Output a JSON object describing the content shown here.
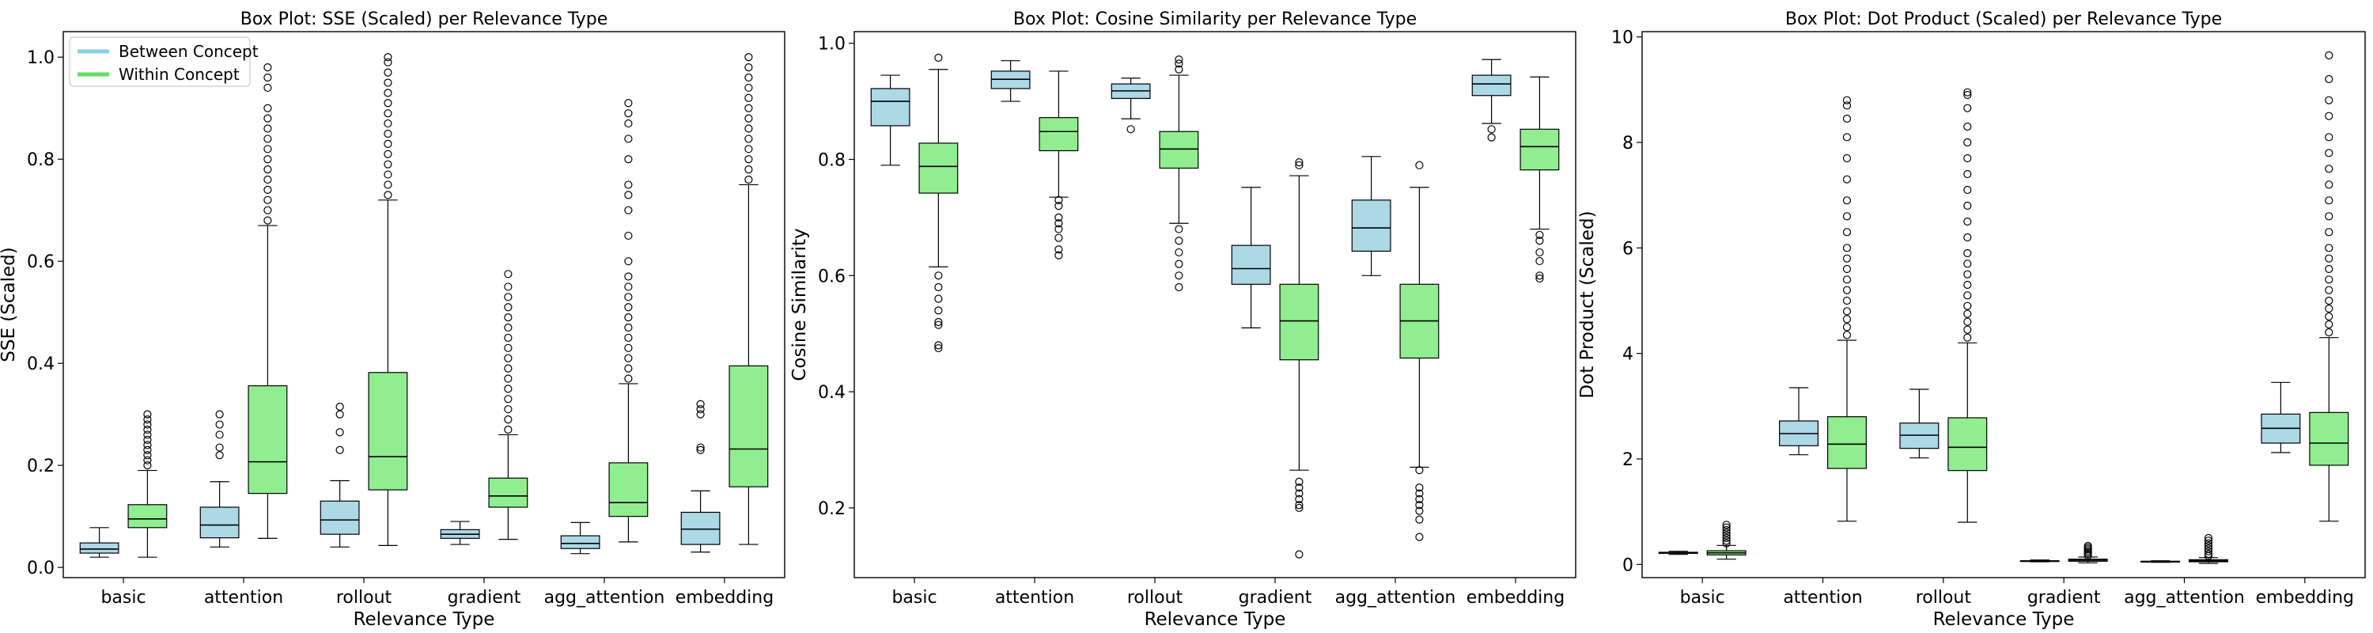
{
  "figure": {
    "background": "#ffffff"
  },
  "colors": {
    "between": "#add8e6",
    "within": "#90ee90",
    "line": "#000000"
  },
  "legend": {
    "placement": "upper-left",
    "entries": [
      {
        "label": "Between Concept",
        "color": "#87ceeb"
      },
      {
        "label": "Within Concept",
        "color": "#5fe05f"
      }
    ]
  },
  "chart_data": [
    {
      "type": "box",
      "title": "Box Plot: SSE (Scaled) per Relevance Type",
      "xlabel": "Relevance Type",
      "ylabel": "SSE (Scaled)",
      "ylim": [
        -0.02,
        1.05
      ],
      "yticks": [
        0.0,
        0.2,
        0.4,
        0.6,
        0.8,
        1.0
      ],
      "ytick_labels": [
        "0.0",
        "0.2",
        "0.4",
        "0.6",
        "0.8",
        "1.0"
      ],
      "categories": [
        "basic",
        "attention",
        "rollout",
        "gradient",
        "agg_attention",
        "embedding"
      ],
      "series": [
        {
          "name": "Between Concept",
          "boxes": [
            {
              "whislo": 0.02,
              "q1": 0.028,
              "med": 0.036,
              "q3": 0.048,
              "whishi": 0.078,
              "fliers": []
            },
            {
              "whislo": 0.04,
              "q1": 0.058,
              "med": 0.083,
              "q3": 0.118,
              "whishi": 0.168,
              "fliers": [
                0.22,
                0.235,
                0.26,
                0.28,
                0.3
              ]
            },
            {
              "whislo": 0.04,
              "q1": 0.065,
              "med": 0.093,
              "q3": 0.13,
              "whishi": 0.17,
              "fliers": [
                0.23,
                0.265,
                0.3,
                0.315
              ]
            },
            {
              "whislo": 0.045,
              "q1": 0.057,
              "med": 0.065,
              "q3": 0.074,
              "whishi": 0.09,
              "fliers": []
            },
            {
              "whislo": 0.027,
              "q1": 0.037,
              "med": 0.047,
              "q3": 0.062,
              "whishi": 0.088,
              "fliers": []
            },
            {
              "whislo": 0.03,
              "q1": 0.045,
              "med": 0.075,
              "q3": 0.108,
              "whishi": 0.15,
              "fliers": [
                0.23,
                0.235,
                0.3,
                0.31,
                0.32
              ]
            }
          ]
        },
        {
          "name": "Within Concept",
          "boxes": [
            {
              "whislo": 0.02,
              "q1": 0.078,
              "med": 0.095,
              "q3": 0.123,
              "whishi": 0.19,
              "fliers": [
                0.2,
                0.21,
                0.22,
                0.23,
                0.24,
                0.25,
                0.26,
                0.27,
                0.28,
                0.29,
                0.3
              ]
            },
            {
              "whislo": 0.057,
              "q1": 0.145,
              "med": 0.207,
              "q3": 0.356,
              "whishi": 0.67,
              "fliers": [
                0.68,
                0.7,
                0.72,
                0.74,
                0.76,
                0.78,
                0.8,
                0.82,
                0.84,
                0.86,
                0.88,
                0.9,
                0.94,
                0.96,
                0.98
              ]
            },
            {
              "whislo": 0.043,
              "q1": 0.152,
              "med": 0.217,
              "q3": 0.382,
              "whishi": 0.72,
              "fliers": [
                0.73,
                0.75,
                0.77,
                0.79,
                0.81,
                0.83,
                0.85,
                0.87,
                0.89,
                0.91,
                0.93,
                0.95,
                0.97,
                0.99,
                1.0
              ]
            },
            {
              "whislo": 0.055,
              "q1": 0.118,
              "med": 0.14,
              "q3": 0.175,
              "whishi": 0.26,
              "fliers": [
                0.27,
                0.29,
                0.31,
                0.33,
                0.35,
                0.37,
                0.39,
                0.41,
                0.43,
                0.45,
                0.47,
                0.49,
                0.51,
                0.53,
                0.55,
                0.575
              ]
            },
            {
              "whislo": 0.05,
              "q1": 0.1,
              "med": 0.127,
              "q3": 0.205,
              "whishi": 0.36,
              "fliers": [
                0.37,
                0.39,
                0.41,
                0.43,
                0.45,
                0.47,
                0.49,
                0.51,
                0.53,
                0.55,
                0.57,
                0.6,
                0.65,
                0.7,
                0.73,
                0.75,
                0.8,
                0.84,
                0.87,
                0.89,
                0.91
              ]
            },
            {
              "whislo": 0.045,
              "q1": 0.158,
              "med": 0.232,
              "q3": 0.395,
              "whishi": 0.75,
              "fliers": [
                0.76,
                0.78,
                0.8,
                0.82,
                0.84,
                0.86,
                0.88,
                0.9,
                0.92,
                0.94,
                0.96,
                0.98,
                1.0
              ]
            }
          ]
        }
      ]
    },
    {
      "type": "box",
      "title": "Box Plot: Cosine Similarity per Relevance Type",
      "xlabel": "Relevance Type",
      "ylabel": "Cosine Similarity",
      "ylim": [
        0.08,
        1.02
      ],
      "yticks": [
        0.2,
        0.4,
        0.6,
        0.8,
        1.0
      ],
      "ytick_labels": [
        "0.2",
        "0.4",
        "0.6",
        "0.8",
        "1.0"
      ],
      "categories": [
        "basic",
        "attention",
        "rollout",
        "gradient",
        "agg_attention",
        "embedding"
      ],
      "series": [
        {
          "name": "Between Concept",
          "boxes": [
            {
              "whislo": 0.79,
              "q1": 0.858,
              "med": 0.9,
              "q3": 0.922,
              "whishi": 0.945,
              "fliers": []
            },
            {
              "whislo": 0.9,
              "q1": 0.922,
              "med": 0.938,
              "q3": 0.952,
              "whishi": 0.97,
              "fliers": []
            },
            {
              "whislo": 0.87,
              "q1": 0.905,
              "med": 0.918,
              "q3": 0.93,
              "whishi": 0.94,
              "fliers": [
                0.852
              ]
            },
            {
              "whislo": 0.51,
              "q1": 0.585,
              "med": 0.612,
              "q3": 0.652,
              "whishi": 0.752,
              "fliers": []
            },
            {
              "whislo": 0.6,
              "q1": 0.642,
              "med": 0.682,
              "q3": 0.73,
              "whishi": 0.805,
              "fliers": []
            },
            {
              "whislo": 0.862,
              "q1": 0.91,
              "med": 0.93,
              "q3": 0.945,
              "whishi": 0.972,
              "fliers": [
                0.852,
                0.838
              ]
            }
          ]
        },
        {
          "name": "Within Concept",
          "boxes": [
            {
              "whislo": 0.615,
              "q1": 0.742,
              "med": 0.788,
              "q3": 0.828,
              "whishi": 0.955,
              "fliers": [
                0.6,
                0.58,
                0.56,
                0.54,
                0.52,
                0.515,
                0.48,
                0.475,
                0.975
              ]
            },
            {
              "whislo": 0.735,
              "q1": 0.815,
              "med": 0.848,
              "q3": 0.872,
              "whishi": 0.952,
              "fliers": [
                0.73,
                0.72,
                0.7,
                0.69,
                0.68,
                0.665,
                0.645,
                0.635
              ]
            },
            {
              "whislo": 0.69,
              "q1": 0.785,
              "med": 0.818,
              "q3": 0.848,
              "whishi": 0.945,
              "fliers": [
                0.955,
                0.965,
                0.972,
                0.68,
                0.66,
                0.64,
                0.62,
                0.6,
                0.58
              ]
            },
            {
              "whislo": 0.265,
              "q1": 0.455,
              "med": 0.522,
              "q3": 0.585,
              "whishi": 0.772,
              "fliers": [
                0.79,
                0.795,
                0.245,
                0.235,
                0.225,
                0.215,
                0.205,
                0.2,
                0.12
              ]
            },
            {
              "whislo": 0.27,
              "q1": 0.458,
              "med": 0.522,
              "q3": 0.585,
              "whishi": 0.752,
              "fliers": [
                0.79,
                0.265,
                0.235,
                0.225,
                0.215,
                0.205,
                0.195,
                0.18,
                0.15
              ]
            },
            {
              "whislo": 0.68,
              "q1": 0.782,
              "med": 0.822,
              "q3": 0.852,
              "whishi": 0.942,
              "fliers": [
                0.67,
                0.66,
                0.64,
                0.625,
                0.6,
                0.595
              ]
            }
          ]
        }
      ]
    },
    {
      "type": "box",
      "title": "Box Plot: Dot Product (Scaled) per Relevance Type",
      "xlabel": "Relevance Type",
      "ylabel": "Dot Product (Scaled)",
      "ylim": [
        -0.25,
        10.1
      ],
      "yticks": [
        0,
        2,
        4,
        6,
        8,
        10
      ],
      "ytick_labels": [
        "0",
        "2",
        "4",
        "6",
        "8",
        "10"
      ],
      "categories": [
        "basic",
        "attention",
        "rollout",
        "gradient",
        "agg_attention",
        "embedding"
      ],
      "series": [
        {
          "name": "Between Concept",
          "boxes": [
            {
              "whislo": 0.19,
              "q1": 0.21,
              "med": 0.22,
              "q3": 0.23,
              "whishi": 0.25,
              "fliers": []
            },
            {
              "whislo": 2.08,
              "q1": 2.25,
              "med": 2.48,
              "q3": 2.72,
              "whishi": 3.35,
              "fliers": []
            },
            {
              "whislo": 2.02,
              "q1": 2.2,
              "med": 2.45,
              "q3": 2.68,
              "whishi": 3.32,
              "fliers": []
            },
            {
              "whislo": 0.05,
              "q1": 0.06,
              "med": 0.065,
              "q3": 0.07,
              "whishi": 0.085,
              "fliers": []
            },
            {
              "whislo": 0.04,
              "q1": 0.05,
              "med": 0.055,
              "q3": 0.06,
              "whishi": 0.07,
              "fliers": []
            },
            {
              "whislo": 2.12,
              "q1": 2.3,
              "med": 2.58,
              "q3": 2.85,
              "whishi": 3.45,
              "fliers": []
            }
          ]
        },
        {
          "name": "Within Concept",
          "boxes": [
            {
              "whislo": 0.1,
              "q1": 0.18,
              "med": 0.22,
              "q3": 0.26,
              "whishi": 0.36,
              "fliers": [
                0.4,
                0.45,
                0.5,
                0.55,
                0.6,
                0.65,
                0.7,
                0.75
              ]
            },
            {
              "whislo": 0.82,
              "q1": 1.82,
              "med": 2.28,
              "q3": 2.8,
              "whishi": 4.25,
              "fliers": [
                4.35,
                4.5,
                4.65,
                4.8,
                5.0,
                5.2,
                5.4,
                5.6,
                5.8,
                6.0,
                6.3,
                6.6,
                6.9,
                7.3,
                7.7,
                8.1,
                8.45,
                8.7,
                8.8
              ]
            },
            {
              "whislo": 0.8,
              "q1": 1.78,
              "med": 2.22,
              "q3": 2.78,
              "whishi": 4.2,
              "fliers": [
                4.3,
                4.45,
                4.6,
                4.75,
                4.9,
                5.1,
                5.3,
                5.5,
                5.7,
                5.9,
                6.2,
                6.5,
                6.8,
                7.1,
                7.4,
                7.7,
                8.0,
                8.3,
                8.65,
                8.9,
                8.95
              ]
            },
            {
              "whislo": 0.03,
              "q1": 0.06,
              "med": 0.08,
              "q3": 0.1,
              "whishi": 0.14,
              "fliers": [
                0.17,
                0.2,
                0.23,
                0.26,
                0.29,
                0.32,
                0.35
              ]
            },
            {
              "whislo": 0.02,
              "q1": 0.05,
              "med": 0.07,
              "q3": 0.09,
              "whishi": 0.13,
              "fliers": [
                0.16,
                0.2,
                0.25,
                0.3,
                0.35,
                0.4,
                0.45,
                0.5
              ]
            },
            {
              "whislo": 0.82,
              "q1": 1.88,
              "med": 2.3,
              "q3": 2.88,
              "whishi": 4.3,
              "fliers": [
                4.4,
                4.55,
                4.7,
                4.85,
                5.0,
                5.2,
                5.4,
                5.6,
                5.8,
                6.0,
                6.3,
                6.6,
                6.9,
                7.2,
                7.5,
                7.8,
                8.1,
                8.5,
                8.8,
                9.2,
                9.65
              ]
            }
          ]
        }
      ]
    }
  ]
}
